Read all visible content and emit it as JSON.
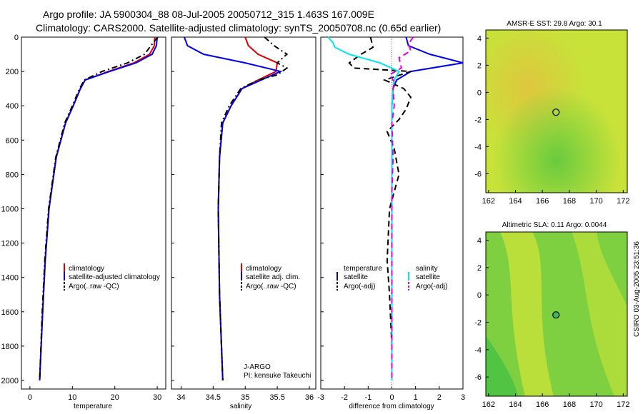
{
  "header": {
    "line1": "Argo profile: JA 5900304_88 08-Jul-2005 20050712_315 1.463S 167.009E",
    "line2": "Climatology: CARS2000. Satellite-adjusted climatology: synTS_20050708.nc (0.65d earlier)"
  },
  "footer": {
    "credit": "CSIRO 03-Aug-2005 23:51:36"
  },
  "chart_data": [
    {
      "type": "line",
      "id": "temperature",
      "xlabel": "temperature",
      "xlim": [
        -2,
        32
      ],
      "ylim": [
        2050,
        0
      ],
      "xticks": [
        0,
        10,
        20,
        30
      ],
      "yticks": [
        0,
        200,
        400,
        600,
        800,
        1000,
        1200,
        1400,
        1600,
        1800,
        2000
      ],
      "legend": {
        "position": "lower-center",
        "entries": [
          "climatology",
          "satellite-adjusted climatology",
          "Argo(..raw -QC)"
        ]
      },
      "series": [
        {
          "name": "climatology",
          "color": "#e00000",
          "dash": "",
          "depth": [
            0,
            50,
            100,
            150,
            200,
            250,
            300,
            400,
            500,
            700,
            1000,
            1300,
            1600,
            2000
          ],
          "values": [
            29.4,
            29.3,
            28.2,
            24.5,
            18.5,
            13.0,
            11.9,
            10.2,
            8.4,
            6.2,
            4.5,
            3.6,
            3.0,
            2.3
          ]
        },
        {
          "name": "satellite-adjusted climatology",
          "color": "#0000ee",
          "dash": "",
          "depth": [
            0,
            50,
            100,
            150,
            200,
            250,
            300,
            400,
            500,
            700,
            1000,
            1300,
            1600,
            2000
          ],
          "values": [
            30.0,
            29.8,
            28.8,
            25.0,
            18.8,
            13.0,
            11.9,
            10.2,
            8.4,
            6.2,
            4.5,
            3.6,
            3.0,
            2.3
          ]
        },
        {
          "name": "Argo(..raw -QC)",
          "color": "#000000",
          "dash": "8,4,2,4",
          "depth": [
            0,
            50,
            100,
            150,
            200,
            250,
            300,
            400,
            500,
            700,
            1000,
            1300,
            1600,
            2000
          ],
          "values": [
            30.1,
            28.5,
            27.0,
            23.0,
            17.0,
            12.8,
            11.7,
            10.0,
            8.2,
            6.1,
            4.4,
            3.5,
            2.9,
            2.3
          ]
        }
      ]
    },
    {
      "type": "line",
      "id": "salinity",
      "xlabel": "salinity",
      "xlim": [
        33.85,
        36.1
      ],
      "ylim": [
        2050,
        0
      ],
      "xticks": [
        34,
        34.5,
        35,
        35.5,
        36
      ],
      "xticklabels": [
        "34",
        "34.5",
        "35",
        "35.5",
        "36"
      ],
      "legend": {
        "position": "lower-center",
        "entries": [
          "climatology",
          "satellite adj. clim.",
          "Argo(..raw -QC)"
        ]
      },
      "annotation": {
        "program": "J-ARGO",
        "pi": "PI: kensuke Takeuchi"
      },
      "series": [
        {
          "name": "climatology",
          "color": "#e00000",
          "dash": "",
          "depth": [
            0,
            50,
            100,
            150,
            200,
            250,
            300,
            400,
            500,
            700,
            1000,
            1500,
            2000
          ],
          "values": [
            35.0,
            35.05,
            35.2,
            35.5,
            35.48,
            35.2,
            34.95,
            34.78,
            34.65,
            34.6,
            34.58,
            34.6,
            34.65
          ]
        },
        {
          "name": "satellite adj. clim.",
          "color": "#0000ee",
          "dash": "",
          "depth": [
            0,
            50,
            100,
            150,
            200,
            250,
            300,
            400,
            500,
            700,
            1000,
            1500,
            2000
          ],
          "values": [
            34.05,
            34.1,
            34.35,
            35.0,
            35.55,
            35.25,
            34.95,
            34.78,
            34.65,
            34.6,
            34.58,
            34.6,
            34.65
          ]
        },
        {
          "name": "Argo(..raw -QC)",
          "color": "#000000",
          "dash": "8,4,2,4",
          "depth": [
            0,
            50,
            100,
            150,
            180,
            220,
            250,
            300,
            400,
            500,
            700,
            1000,
            1500,
            2000
          ],
          "values": [
            35.3,
            35.45,
            35.65,
            35.5,
            35.65,
            35.5,
            35.2,
            34.93,
            34.75,
            34.63,
            34.6,
            34.58,
            34.6,
            34.65
          ]
        }
      ]
    },
    {
      "type": "line",
      "id": "difference",
      "xlabel": "difference from climatology",
      "xlim": [
        -3,
        3
      ],
      "ylim": [
        2050,
        0
      ],
      "xticks": [
        -3,
        -2,
        -1,
        0,
        1,
        2,
        3
      ],
      "legend": {
        "position": "lower-center",
        "temp_entries": [
          "temperature",
          "satellite",
          "Argo(-adj)"
        ],
        "sal_entries": [
          "salinity",
          "satellite",
          "Argo(-adj)"
        ]
      },
      "series": [
        {
          "name": "temperature satellite",
          "color": "#0000ee",
          "dash": "",
          "depth": [
            0,
            50,
            100,
            150,
            200,
            250,
            300,
            400,
            600,
            1000,
            1500,
            2000
          ],
          "values": [
            0.6,
            0.7,
            1.6,
            3.0,
            0.8,
            0.2,
            0.05,
            0,
            0,
            0,
            0,
            0
          ]
        },
        {
          "name": "temperature Argo(-adj)",
          "color": "#000000",
          "dash": "8,5",
          "depth": [
            0,
            60,
            100,
            150,
            180,
            200,
            250,
            300,
            350,
            420,
            480,
            550,
            650,
            800,
            1000,
            1300,
            1500,
            1800,
            2000
          ],
          "values": [
            -0.9,
            -0.8,
            -1.3,
            -1.8,
            -1.6,
            0.8,
            -0.3,
            0.5,
            0.8,
            0.6,
            0.3,
            -0.2,
            0.1,
            0.3,
            -0.1,
            -0.2,
            -0.1,
            0,
            0
          ]
        },
        {
          "name": "salinity satellite",
          "color": "#00e5ee",
          "dash": "",
          "depth": [
            0,
            30,
            60,
            100,
            150,
            200,
            250,
            300,
            400,
            600,
            1000,
            1500,
            2000
          ],
          "values": [
            -2.7,
            -2.5,
            -2.4,
            -1.8,
            -0.5,
            0.3,
            0.1,
            0.05,
            0,
            0,
            0,
            0,
            0
          ]
        },
        {
          "name": "salinity Argo(-adj)",
          "color": "#e000e0",
          "dash": "8,5",
          "depth": [
            0,
            40,
            80,
            120,
            180,
            220,
            260,
            300,
            400,
            500,
            700,
            900,
            1200,
            1500,
            2000
          ],
          "values": [
            0.9,
            0.7,
            0.8,
            0.3,
            0.4,
            -0.1,
            0.1,
            0.05,
            0.1,
            0,
            0.05,
            0,
            0,
            0,
            0
          ]
        }
      ]
    },
    {
      "type": "heatmap",
      "id": "sst-map",
      "title": "AMSR-E SST: 29.8 Argo: 30.1",
      "xlim": [
        161.8,
        172.3
      ],
      "ylim": [
        -7.4,
        4.6
      ],
      "xticks": [
        162,
        164,
        166,
        168,
        170,
        172
      ],
      "yticks": [
        4,
        2,
        0,
        -2,
        -4,
        -6
      ],
      "profile_location": {
        "lon": 167.009,
        "lat": -1.463
      }
    },
    {
      "type": "heatmap",
      "id": "sla-map",
      "title": "Altimetric SLA: 0.11 Argo: 0.0044",
      "xlim": [
        161.8,
        172.3
      ],
      "ylim": [
        -7.4,
        4.6
      ],
      "xticks": [
        162,
        164,
        166,
        168,
        170,
        172
      ],
      "yticks": [
        4,
        2,
        0,
        -2,
        -4,
        -6
      ],
      "profile_location": {
        "lon": 167.009,
        "lat": -1.463
      }
    }
  ]
}
